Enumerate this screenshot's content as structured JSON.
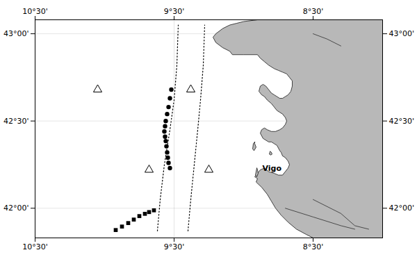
{
  "chart_data": {
    "type": "map",
    "xlim": [
      -10.5,
      -8.0
    ],
    "ylim": [
      41.83,
      43.08
    ],
    "xticks": [
      {
        "value": -10.5,
        "label": "10°30'"
      },
      {
        "value": -9.5,
        "label": "9°30'"
      },
      {
        "value": -8.5,
        "label": "8°30'"
      }
    ],
    "yticks": [
      {
        "value": 42.0,
        "label": "42°00'"
      },
      {
        "value": 42.5,
        "label": "42°30'"
      },
      {
        "value": 43.0,
        "label": "43°00'"
      }
    ],
    "grid": true,
    "series": [
      {
        "type": "polygon",
        "color": "#b8b8b8",
        "points": [
          [
            -8.0,
            43.08
          ],
          [
            -8.0,
            41.83
          ],
          [
            -8.5,
            41.83
          ],
          [
            -8.55,
            41.85
          ],
          [
            -8.62,
            41.88
          ],
          [
            -8.68,
            41.92
          ],
          [
            -8.73,
            41.96
          ],
          [
            -8.77,
            42.0
          ],
          [
            -8.8,
            42.04
          ],
          [
            -8.83,
            42.08
          ],
          [
            -8.87,
            42.12
          ],
          [
            -8.91,
            42.15
          ],
          [
            -8.9,
            42.17
          ],
          [
            -8.92,
            42.18
          ],
          [
            -8.9,
            42.2
          ],
          [
            -8.88,
            42.22
          ],
          [
            -8.85,
            42.23
          ],
          [
            -8.82,
            42.21
          ],
          [
            -8.78,
            42.2
          ],
          [
            -8.75,
            42.19
          ],
          [
            -8.72,
            42.19
          ],
          [
            -8.7,
            42.21
          ],
          [
            -8.68,
            42.23
          ],
          [
            -8.67,
            42.25
          ],
          [
            -8.68,
            42.27
          ],
          [
            -8.7,
            42.29
          ],
          [
            -8.72,
            42.3
          ],
          [
            -8.73,
            42.32
          ],
          [
            -8.74,
            42.33
          ],
          [
            -8.76,
            42.36
          ],
          [
            -8.78,
            42.37
          ],
          [
            -8.8,
            42.38
          ],
          [
            -8.82,
            42.38
          ],
          [
            -8.86,
            42.4
          ],
          [
            -8.88,
            42.43
          ],
          [
            -8.87,
            42.45
          ],
          [
            -8.85,
            42.46
          ],
          [
            -8.83,
            42.45
          ],
          [
            -8.8,
            42.44
          ],
          [
            -8.77,
            42.44
          ],
          [
            -8.74,
            42.45
          ],
          [
            -8.72,
            42.46
          ],
          [
            -8.7,
            42.48
          ],
          [
            -8.69,
            42.5
          ],
          [
            -8.7,
            42.52
          ],
          [
            -8.72,
            42.54
          ],
          [
            -8.74,
            42.55
          ],
          [
            -8.76,
            42.56
          ],
          [
            -8.78,
            42.58
          ],
          [
            -8.8,
            42.6
          ],
          [
            -8.83,
            42.62
          ],
          [
            -8.85,
            42.64
          ],
          [
            -8.87,
            42.65
          ],
          [
            -8.89,
            42.67
          ],
          [
            -8.88,
            42.7
          ],
          [
            -8.86,
            42.71
          ],
          [
            -8.84,
            42.7
          ],
          [
            -8.82,
            42.68
          ],
          [
            -8.8,
            42.66
          ],
          [
            -8.78,
            42.65
          ],
          [
            -8.76,
            42.64
          ],
          [
            -8.74,
            42.63
          ],
          [
            -8.72,
            42.63
          ],
          [
            -8.7,
            42.64
          ],
          [
            -8.68,
            42.65
          ],
          [
            -8.66,
            42.67
          ],
          [
            -8.65,
            42.7
          ],
          [
            -8.65,
            42.73
          ],
          [
            -8.67,
            42.75
          ],
          [
            -8.69,
            42.77
          ],
          [
            -8.72,
            42.78
          ],
          [
            -8.75,
            42.79
          ],
          [
            -8.78,
            42.8
          ],
          [
            -8.82,
            42.82
          ],
          [
            -8.85,
            42.84
          ],
          [
            -8.88,
            42.86
          ],
          [
            -8.9,
            42.88
          ],
          [
            -9.0,
            42.88
          ],
          [
            -9.08,
            42.88
          ],
          [
            -9.1,
            42.9
          ],
          [
            -9.15,
            42.92
          ],
          [
            -9.2,
            42.95
          ],
          [
            -9.22,
            42.98
          ],
          [
            -9.2,
            43.0
          ],
          [
            -9.15,
            43.03
          ],
          [
            -9.1,
            43.05
          ],
          [
            -9.05,
            43.06
          ],
          [
            -9.0,
            43.07
          ],
          [
            -8.9,
            43.08
          ],
          [
            -8.8,
            43.08
          ],
          [
            -8.7,
            43.08
          ],
          [
            -8.6,
            43.08
          ],
          [
            -8.5,
            43.08
          ]
        ]
      },
      {
        "type": "polygon",
        "color": "#b8b8b8",
        "points": [
          [
            -8.9,
            42.22
          ],
          [
            -8.895,
            42.2
          ],
          [
            -8.905,
            42.18
          ],
          [
            -8.915,
            42.19
          ],
          [
            -8.91,
            42.21
          ],
          [
            -8.905,
            42.23
          ]
        ]
      },
      {
        "type": "polygon",
        "color": "#b8b8b8",
        "points": [
          [
            -8.92,
            42.37
          ],
          [
            -8.91,
            42.35
          ],
          [
            -8.925,
            42.33
          ],
          [
            -8.935,
            42.34
          ],
          [
            -8.93,
            42.37
          ],
          [
            -8.92,
            42.38
          ]
        ]
      },
      {
        "type": "polygon",
        "color": "#b8b8b8",
        "points": [
          [
            -8.8,
            42.32
          ],
          [
            -8.795,
            42.31
          ],
          [
            -8.805,
            42.305
          ],
          [
            -8.815,
            42.31
          ],
          [
            -8.81,
            42.325
          ]
        ]
      },
      {
        "type": "line",
        "color": "#000000",
        "line_style": "solid",
        "points": [
          [
            -8.5,
            42.05
          ],
          [
            -8.3,
            41.97
          ],
          [
            -8.2,
            41.9
          ],
          [
            -8.1,
            41.88
          ]
        ]
      },
      {
        "type": "line",
        "color": "#000000",
        "line_style": "solid",
        "points": [
          [
            -8.5,
            43.0
          ],
          [
            -8.4,
            42.97
          ],
          [
            -8.3,
            42.93
          ]
        ]
      },
      {
        "type": "line",
        "color": "#000000",
        "line_style": "solid",
        "points": [
          [
            -8.2,
            41.88
          ],
          [
            -8.3,
            41.9
          ],
          [
            -8.5,
            41.95
          ],
          [
            -8.7,
            42.0
          ]
        ]
      },
      {
        "type": "line",
        "color": "#000000",
        "line_style": "dotted",
        "points": [
          [
            -9.62,
            41.87
          ],
          [
            -9.6,
            42.05
          ],
          [
            -9.57,
            42.25
          ],
          [
            -9.53,
            42.45
          ],
          [
            -9.5,
            42.62
          ],
          [
            -9.48,
            42.82
          ],
          [
            -9.47,
            43.05
          ]
        ]
      },
      {
        "type": "line",
        "color": "#000000",
        "line_style": "dotted",
        "points": [
          [
            -9.4,
            41.87
          ],
          [
            -9.38,
            42.05
          ],
          [
            -9.355,
            42.25
          ],
          [
            -9.33,
            42.45
          ],
          [
            -9.31,
            42.62
          ],
          [
            -9.29,
            42.82
          ],
          [
            -9.28,
            43.05
          ]
        ]
      },
      {
        "type": "scatter",
        "color": "#000000",
        "marker": "circle",
        "points": [
          [
            -9.52,
            42.68
          ],
          [
            -9.53,
            42.63
          ],
          [
            -9.54,
            42.58
          ],
          [
            -9.55,
            42.54
          ],
          [
            -9.56,
            42.5
          ],
          [
            -9.565,
            42.47
          ],
          [
            -9.57,
            42.44
          ],
          [
            -9.565,
            42.41
          ],
          [
            -9.56,
            42.385
          ],
          [
            -9.555,
            42.355
          ],
          [
            -9.55,
            42.32
          ],
          [
            -9.545,
            42.29
          ],
          [
            -9.54,
            42.26
          ],
          [
            -9.53,
            42.23
          ]
        ]
      },
      {
        "type": "scatter",
        "color": "#000000",
        "marker": "square",
        "points": [
          [
            -9.92,
            41.875
          ],
          [
            -9.875,
            41.895
          ],
          [
            -9.83,
            41.915
          ],
          [
            -9.79,
            41.935
          ],
          [
            -9.75,
            41.955
          ],
          [
            -9.71,
            41.968
          ],
          [
            -9.68,
            41.978
          ],
          [
            -9.645,
            41.988
          ]
        ]
      },
      {
        "type": "scatter",
        "color": "#000000",
        "marker": "open-triangle",
        "points": [
          [
            -10.05,
            42.68
          ],
          [
            -9.38,
            42.68
          ],
          [
            -9.68,
            42.22
          ],
          [
            -9.25,
            42.22
          ]
        ]
      }
    ],
    "annotations": [
      {
        "text": "Vigo",
        "x": -8.88,
        "y": 42.23
      }
    ]
  }
}
